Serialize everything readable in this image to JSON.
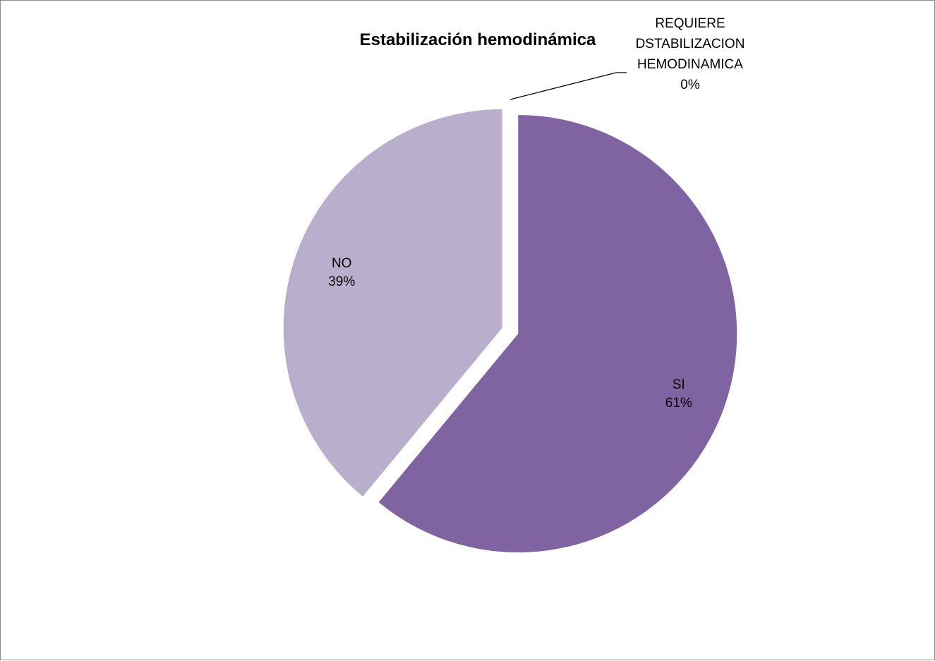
{
  "chart_data": {
    "type": "pie",
    "title": "Estabilización hemodinámica",
    "slices": [
      {
        "label": "SI",
        "value": 61,
        "value_label": "61%",
        "color": "#8064a2"
      },
      {
        "label": "NO",
        "value": 39,
        "value_label": "39%",
        "color": "#b9aecb"
      },
      {
        "label_lines": [
          "REQUIERE",
          "DSTABILIZACION",
          "HEMODINAMICA"
        ],
        "value": 0,
        "value_label": "0%",
        "color": "#4f3a72"
      }
    ],
    "start_angle_deg": 0,
    "direction": "clockwise",
    "exploded": true,
    "legend": "none"
  }
}
